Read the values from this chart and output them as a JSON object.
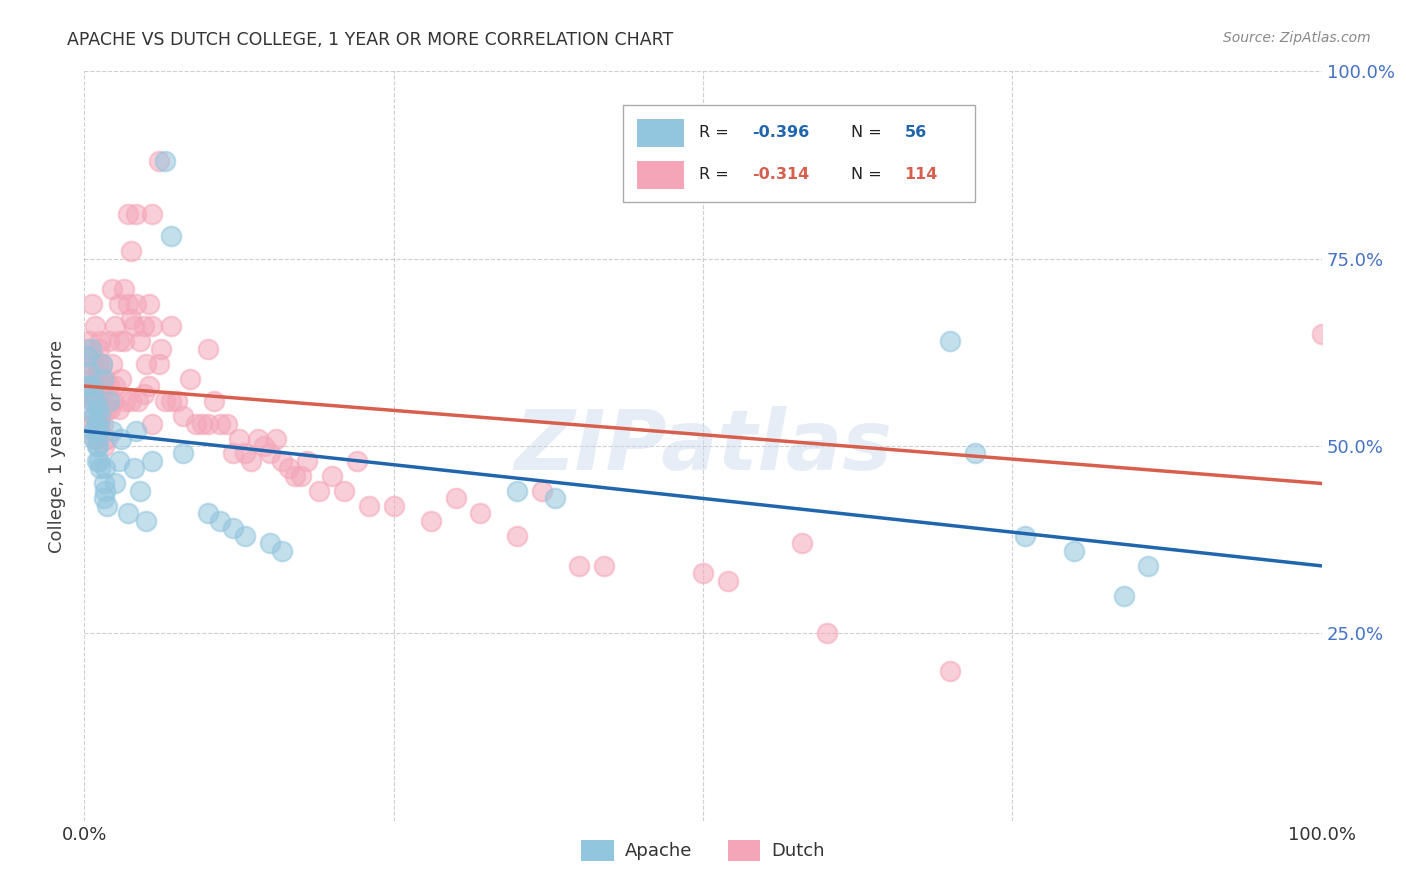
{
  "title": "APACHE VS DUTCH COLLEGE, 1 YEAR OR MORE CORRELATION CHART",
  "source": "Source: ZipAtlas.com",
  "ylabel": "College, 1 year or more",
  "right_yticks": [
    "100.0%",
    "75.0%",
    "50.0%",
    "25.0%"
  ],
  "right_ytick_values": [
    1.0,
    0.75,
    0.5,
    0.25
  ],
  "watermark": "ZIPatlas",
  "apache_color": "#92c5de",
  "dutch_color": "#f4a6b8",
  "apache_line_color": "#2166ac",
  "dutch_line_color": "#d6604d",
  "background_color": "#ffffff",
  "grid_color": "#bbbbbb",
  "apache_scatter": [
    [
      0.002,
      0.62
    ],
    [
      0.003,
      0.58
    ],
    [
      0.004,
      0.6
    ],
    [
      0.005,
      0.63
    ],
    [
      0.006,
      0.55
    ],
    [
      0.006,
      0.58
    ],
    [
      0.007,
      0.57
    ],
    [
      0.007,
      0.52
    ],
    [
      0.008,
      0.54
    ],
    [
      0.008,
      0.51
    ],
    [
      0.009,
      0.56
    ],
    [
      0.009,
      0.52
    ],
    [
      0.01,
      0.53
    ],
    [
      0.01,
      0.5
    ],
    [
      0.01,
      0.48
    ],
    [
      0.011,
      0.55
    ],
    [
      0.011,
      0.5
    ],
    [
      0.012,
      0.48
    ],
    [
      0.012,
      0.52
    ],
    [
      0.013,
      0.54
    ],
    [
      0.013,
      0.47
    ],
    [
      0.014,
      0.61
    ],
    [
      0.015,
      0.59
    ],
    [
      0.016,
      0.45
    ],
    [
      0.016,
      0.43
    ],
    [
      0.017,
      0.44
    ],
    [
      0.017,
      0.47
    ],
    [
      0.018,
      0.42
    ],
    [
      0.02,
      0.56
    ],
    [
      0.022,
      0.52
    ],
    [
      0.025,
      0.45
    ],
    [
      0.028,
      0.48
    ],
    [
      0.03,
      0.51
    ],
    [
      0.035,
      0.41
    ],
    [
      0.04,
      0.47
    ],
    [
      0.042,
      0.52
    ],
    [
      0.045,
      0.44
    ],
    [
      0.05,
      0.4
    ],
    [
      0.055,
      0.48
    ],
    [
      0.065,
      0.88
    ],
    [
      0.07,
      0.78
    ],
    [
      0.08,
      0.49
    ],
    [
      0.1,
      0.41
    ],
    [
      0.11,
      0.4
    ],
    [
      0.12,
      0.39
    ],
    [
      0.13,
      0.38
    ],
    [
      0.15,
      0.37
    ],
    [
      0.16,
      0.36
    ],
    [
      0.35,
      0.44
    ],
    [
      0.38,
      0.43
    ],
    [
      0.7,
      0.64
    ],
    [
      0.72,
      0.49
    ],
    [
      0.76,
      0.38
    ],
    [
      0.8,
      0.36
    ],
    [
      0.84,
      0.3
    ],
    [
      0.86,
      0.34
    ]
  ],
  "dutch_scatter": [
    [
      0.002,
      0.63
    ],
    [
      0.003,
      0.6
    ],
    [
      0.003,
      0.57
    ],
    [
      0.004,
      0.64
    ],
    [
      0.005,
      0.61
    ],
    [
      0.005,
      0.58
    ],
    [
      0.006,
      0.69
    ],
    [
      0.006,
      0.56
    ],
    [
      0.007,
      0.53
    ],
    [
      0.007,
      0.59
    ],
    [
      0.007,
      0.62
    ],
    [
      0.008,
      0.56
    ],
    [
      0.008,
      0.54
    ],
    [
      0.009,
      0.66
    ],
    [
      0.009,
      0.58
    ],
    [
      0.009,
      0.51
    ],
    [
      0.01,
      0.61
    ],
    [
      0.01,
      0.59
    ],
    [
      0.01,
      0.57
    ],
    [
      0.01,
      0.53
    ],
    [
      0.011,
      0.61
    ],
    [
      0.011,
      0.56
    ],
    [
      0.011,
      0.51
    ],
    [
      0.012,
      0.63
    ],
    [
      0.012,
      0.56
    ],
    [
      0.013,
      0.64
    ],
    [
      0.013,
      0.59
    ],
    [
      0.013,
      0.53
    ],
    [
      0.014,
      0.61
    ],
    [
      0.014,
      0.55
    ],
    [
      0.015,
      0.58
    ],
    [
      0.015,
      0.53
    ],
    [
      0.016,
      0.56
    ],
    [
      0.016,
      0.5
    ],
    [
      0.017,
      0.59
    ],
    [
      0.018,
      0.55
    ],
    [
      0.018,
      0.51
    ],
    [
      0.02,
      0.64
    ],
    [
      0.02,
      0.58
    ],
    [
      0.021,
      0.55
    ],
    [
      0.022,
      0.71
    ],
    [
      0.022,
      0.61
    ],
    [
      0.023,
      0.56
    ],
    [
      0.025,
      0.66
    ],
    [
      0.025,
      0.58
    ],
    [
      0.028,
      0.69
    ],
    [
      0.028,
      0.64
    ],
    [
      0.028,
      0.55
    ],
    [
      0.03,
      0.59
    ],
    [
      0.032,
      0.71
    ],
    [
      0.032,
      0.64
    ],
    [
      0.033,
      0.56
    ],
    [
      0.035,
      0.81
    ],
    [
      0.035,
      0.69
    ],
    [
      0.038,
      0.76
    ],
    [
      0.038,
      0.67
    ],
    [
      0.038,
      0.56
    ],
    [
      0.04,
      0.66
    ],
    [
      0.042,
      0.81
    ],
    [
      0.042,
      0.69
    ],
    [
      0.043,
      0.56
    ],
    [
      0.045,
      0.64
    ],
    [
      0.048,
      0.66
    ],
    [
      0.048,
      0.57
    ],
    [
      0.05,
      0.61
    ],
    [
      0.052,
      0.69
    ],
    [
      0.052,
      0.58
    ],
    [
      0.055,
      0.81
    ],
    [
      0.055,
      0.66
    ],
    [
      0.055,
      0.53
    ],
    [
      0.06,
      0.88
    ],
    [
      0.06,
      0.61
    ],
    [
      0.062,
      0.63
    ],
    [
      0.065,
      0.56
    ],
    [
      0.07,
      0.66
    ],
    [
      0.07,
      0.56
    ],
    [
      0.075,
      0.56
    ],
    [
      0.08,
      0.54
    ],
    [
      0.085,
      0.59
    ],
    [
      0.09,
      0.53
    ],
    [
      0.095,
      0.53
    ],
    [
      0.1,
      0.63
    ],
    [
      0.1,
      0.53
    ],
    [
      0.105,
      0.56
    ],
    [
      0.11,
      0.53
    ],
    [
      0.115,
      0.53
    ],
    [
      0.12,
      0.49
    ],
    [
      0.125,
      0.51
    ],
    [
      0.13,
      0.49
    ],
    [
      0.135,
      0.48
    ],
    [
      0.14,
      0.51
    ],
    [
      0.145,
      0.5
    ],
    [
      0.15,
      0.49
    ],
    [
      0.155,
      0.51
    ],
    [
      0.16,
      0.48
    ],
    [
      0.165,
      0.47
    ],
    [
      0.17,
      0.46
    ],
    [
      0.175,
      0.46
    ],
    [
      0.18,
      0.48
    ],
    [
      0.19,
      0.44
    ],
    [
      0.2,
      0.46
    ],
    [
      0.21,
      0.44
    ],
    [
      0.22,
      0.48
    ],
    [
      0.23,
      0.42
    ],
    [
      0.25,
      0.42
    ],
    [
      0.28,
      0.4
    ],
    [
      0.3,
      0.43
    ],
    [
      0.32,
      0.41
    ],
    [
      0.35,
      0.38
    ],
    [
      0.37,
      0.44
    ],
    [
      0.4,
      0.34
    ],
    [
      0.42,
      0.34
    ],
    [
      0.5,
      0.33
    ],
    [
      0.52,
      0.32
    ],
    [
      0.58,
      0.37
    ],
    [
      0.6,
      0.25
    ],
    [
      0.7,
      0.2
    ],
    [
      1.0,
      0.65
    ]
  ],
  "xlim": [
    0.0,
    1.0
  ],
  "ylim": [
    0.0,
    1.0
  ],
  "xticks": [
    0.0,
    0.25,
    0.5,
    0.75,
    1.0
  ],
  "xtick_labels": [
    "0.0%",
    "",
    "",
    "",
    "100.0%"
  ],
  "apache_trend_x": [
    0.0,
    1.0
  ],
  "apache_trend_y": [
    0.52,
    0.34
  ],
  "dutch_trend_x": [
    0.0,
    1.0
  ],
  "dutch_trend_y": [
    0.58,
    0.45
  ]
}
